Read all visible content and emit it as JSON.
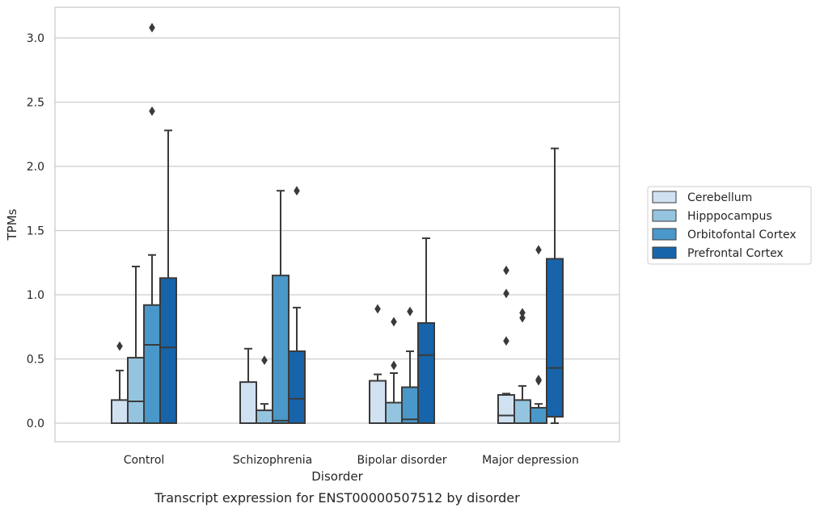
{
  "caption": "Transcript expression for ENST00000507512 by disorder",
  "chart_data": {
    "type": "box",
    "xlabel": "Disorder",
    "ylabel": "TPMs",
    "ylim": [
      -0.15,
      3.25
    ],
    "yticks": [
      "0.0",
      "0.5",
      "1.0",
      "1.5",
      "2.0",
      "2.5",
      "3.0"
    ],
    "grid": true,
    "legend_position": "right",
    "categories": [
      "Control",
      "Schizophrenia",
      "Bipolar disorder",
      "Major depression"
    ],
    "series": [
      {
        "name": "Cerebellum",
        "color": "#d0e1f2",
        "boxes": [
          {
            "whislo": 0.0,
            "q1": 0.0,
            "med": 0.0,
            "q3": 0.18,
            "whishi": 0.41,
            "fliers": [
              0.6
            ]
          },
          {
            "whislo": 0.0,
            "q1": 0.0,
            "med": 0.0,
            "q3": 0.32,
            "whishi": 0.58,
            "fliers": []
          },
          {
            "whislo": 0.0,
            "q1": 0.0,
            "med": 0.0,
            "q3": 0.33,
            "whishi": 0.38,
            "fliers": [
              0.89
            ]
          },
          {
            "whislo": 0.0,
            "q1": 0.0,
            "med": 0.06,
            "q3": 0.22,
            "whishi": 0.23,
            "fliers": [
              1.19,
              1.01,
              0.64
            ]
          }
        ]
      },
      {
        "name": "Hipppocampus",
        "color": "#94c4df",
        "boxes": [
          {
            "whislo": 0.0,
            "q1": 0.0,
            "med": 0.17,
            "q3": 0.51,
            "whishi": 1.22,
            "fliers": []
          },
          {
            "whislo": 0.0,
            "q1": 0.0,
            "med": 0.0,
            "q3": 0.1,
            "whishi": 0.15,
            "fliers": [
              0.49
            ]
          },
          {
            "whislo": 0.0,
            "q1": 0.0,
            "med": 0.0,
            "q3": 0.16,
            "whishi": 0.39,
            "fliers": [
              0.79,
              0.45
            ]
          },
          {
            "whislo": 0.0,
            "q1": 0.0,
            "med": 0.0,
            "q3": 0.18,
            "whishi": 0.29,
            "fliers": [
              0.86,
              0.82
            ]
          }
        ]
      },
      {
        "name": "Orbitofontal Cortex",
        "color": "#4a98c9",
        "boxes": [
          {
            "whislo": 0.0,
            "q1": 0.0,
            "med": 0.61,
            "q3": 0.92,
            "whishi": 1.31,
            "fliers": [
              3.08,
              2.43
            ]
          },
          {
            "whislo": 0.0,
            "q1": 0.0,
            "med": 0.02,
            "q3": 1.15,
            "whishi": 1.81,
            "fliers": []
          },
          {
            "whislo": 0.0,
            "q1": 0.0,
            "med": 0.03,
            "q3": 0.28,
            "whishi": 0.56,
            "fliers": [
              0.87
            ]
          },
          {
            "whislo": 0.0,
            "q1": 0.0,
            "med": 0.0,
            "q3": 0.12,
            "whishi": 0.15,
            "fliers": [
              1.35,
              0.34,
              0.33
            ]
          }
        ]
      },
      {
        "name": "Prefrontal Cortex",
        "color": "#1764ab",
        "boxes": [
          {
            "whislo": 0.0,
            "q1": 0.0,
            "med": 0.59,
            "q3": 1.13,
            "whishi": 2.28,
            "fliers": []
          },
          {
            "whislo": 0.0,
            "q1": 0.0,
            "med": 0.19,
            "q3": 0.56,
            "whishi": 0.9,
            "fliers": [
              1.81
            ]
          },
          {
            "whislo": 0.0,
            "q1": 0.0,
            "med": 0.53,
            "q3": 0.78,
            "whishi": 1.44,
            "fliers": []
          },
          {
            "whislo": 0.0,
            "q1": 0.05,
            "med": 0.43,
            "q3": 1.28,
            "whishi": 2.14,
            "fliers": []
          }
        ]
      }
    ]
  }
}
